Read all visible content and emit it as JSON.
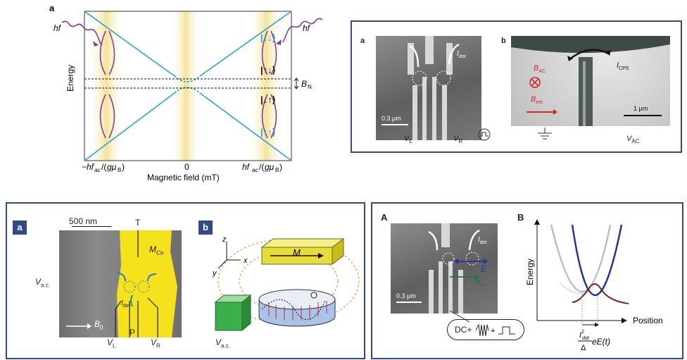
{
  "fig1": {
    "panel_label": "a",
    "y_axis_label": "Energy",
    "x_axis_label": "Magnetic field (mT)",
    "x_tick_left": "−hf",
    "x_tick_center": "0",
    "x_tick_right": "hf",
    "hf_left": "hf",
    "hf_right": "hf",
    "state_down_down": "|↓↓⟩",
    "state_up_down": "|↑↓⟩",
    "state_down_up": "|↓↑⟩",
    "state_up_up": "|↑↑⟩",
    "bn_label": "B",
    "colors": {
      "lines": "#29a3d8",
      "arrows": "#8a3c8f",
      "bands": "#f6e7a8"
    }
  },
  "fig2": {
    "panel_a": "a",
    "panel_b": "b",
    "i_dot": "I",
    "scale_a": "0.3 μm",
    "v_l": "V",
    "v_r": "V",
    "b_ac": "B",
    "b_ext": "B",
    "i_cps": "I",
    "scale_b": "1 μm",
    "v_ac": "V"
  },
  "fig3": {
    "panel_a": "a",
    "panel_b": "b",
    "scale": "500 nm",
    "t_label": "T",
    "m_co": "M",
    "v_ac": "V",
    "i_dot": "I",
    "b0": "B",
    "v_l": "V",
    "p_label": "P",
    "v_r": "V",
    "m_label": "M",
    "axis_z": "z",
    "axis_x": "x",
    "axis_y": "y",
    "v_ac_b": "V"
  },
  "fig4": {
    "panel_a": "A",
    "panel_b": "B",
    "i_dot": "I",
    "e_vec": "E",
    "b_ext": "B",
    "scale": "0.3 μm",
    "signal": "DC+",
    "y_axis_label": "Energy",
    "x_axis_label": "Position",
    "formula": "eE(t)"
  }
}
